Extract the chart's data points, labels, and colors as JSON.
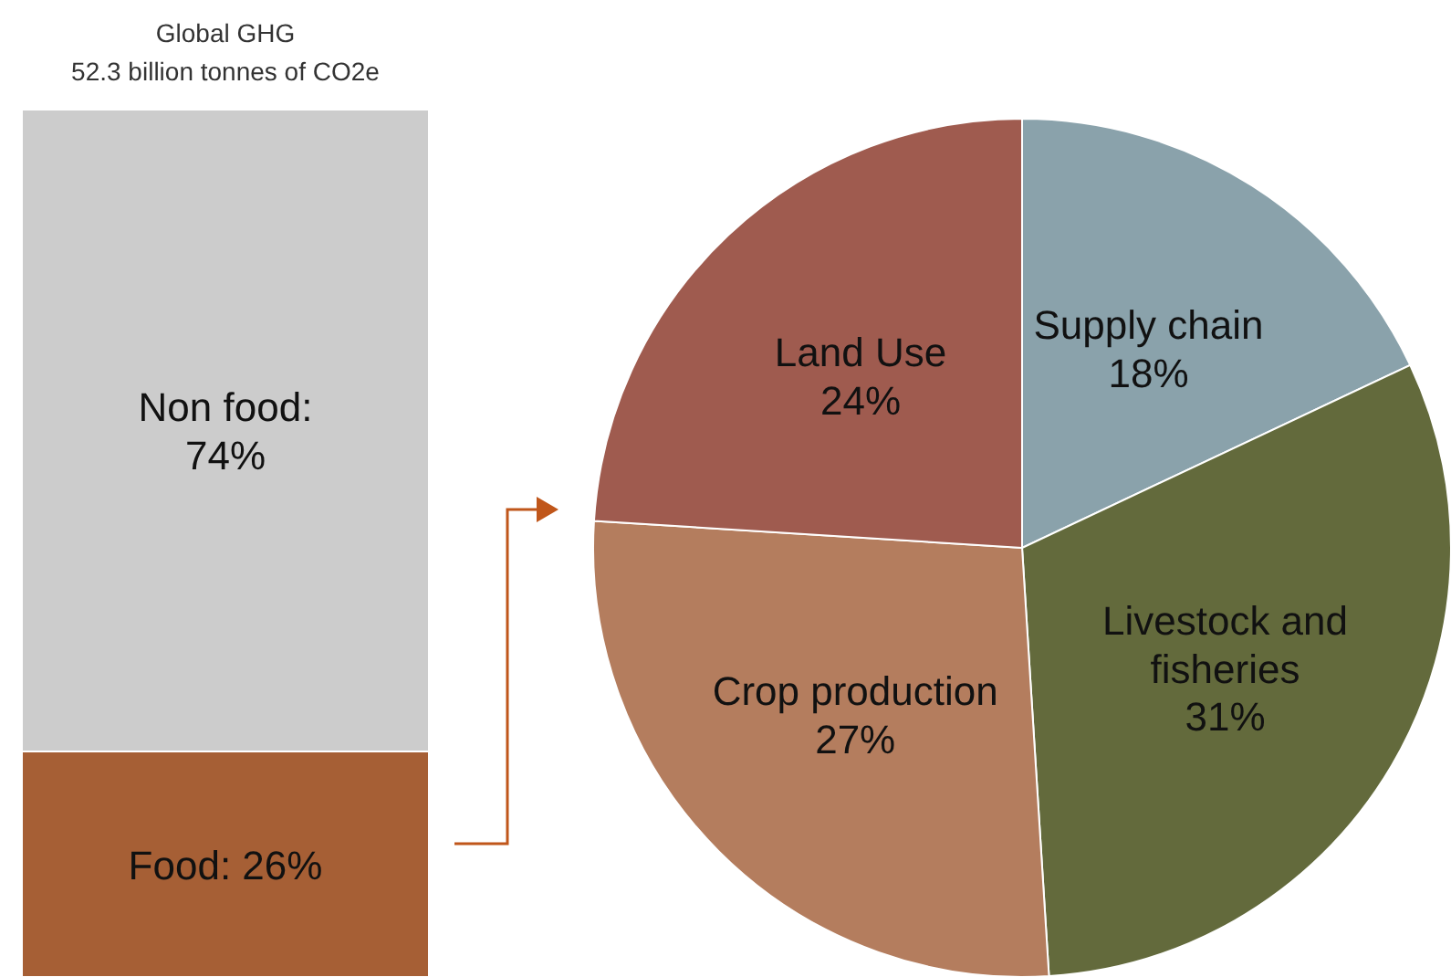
{
  "chart_data": [
    {
      "type": "bar",
      "title": "Global GHG",
      "subtitle": "52.3 billion tonnes of CO2e",
      "categories": [
        null
      ],
      "stacked": true,
      "series": [
        {
          "color": "#a65f35",
          "values": [
            26
          ],
          "value_labels": [
            "Food: 26%"
          ]
        },
        {
          "color": "#cccccc",
          "values": [
            74
          ],
          "value_labels": [
            "Non food:\n74%"
          ]
        }
      ]
    },
    {
      "type": "pie",
      "categories": [
        "Supply chain",
        "Livestock and\nfisheries",
        "Crop production",
        "Land Use"
      ],
      "values": [
        18,
        31,
        27,
        24
      ],
      "colors": [
        "#8aa2ab",
        "#636a3c",
        "#b47d5e",
        "#9f5b4f"
      ],
      "value_labels": [
        "18%",
        "31%",
        "27%",
        "24%"
      ]
    }
  ]
}
